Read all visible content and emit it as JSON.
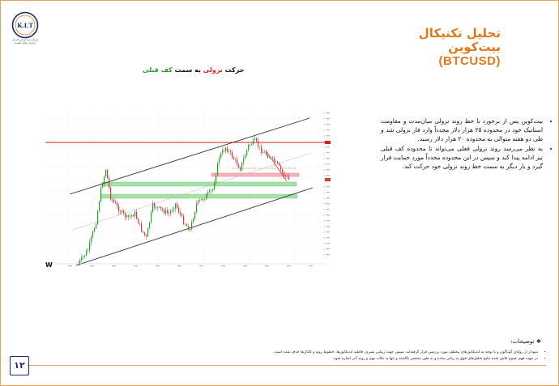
{
  "header": {
    "logo_text": "K.I.T",
    "logo_subtitle": "شرکت سبدگردانی کاردان ایرانیان تحلیل اقتصاد",
    "title_line1": "تحلیل تکنیکال",
    "title_line2": "بیت‌کوین",
    "title_line3": "(BTCUSD)"
  },
  "chart_caption": {
    "part1": "حرکت ",
    "part2": "نزولی",
    "part3": " به سمت ",
    "part4": "کف قبلی"
  },
  "chart": {
    "watermark": "W",
    "colors": {
      "up": "#2a9a2a",
      "down": "#d23b3b",
      "channel": "#222222",
      "resistance": "#d22222",
      "support_zone": "#7fd67f",
      "resist_zone": "#f4a3b0"
    }
  },
  "bullets": [
    "بیت‌کوین پس از برخورد با خط روند نزولی میان‌مدت و مقاومت استاتیک خود در محدوده ۲۵ هزار دلار مجدداً وارد فاز نزولی شد و طی دو هفته متوالی به محدوده ۲۰ هزار دلار رسید.",
    "به نظر می‌رسد روند نزولی فعلی می‌تواند تا محدوده کف قبلی نیز ادامه پیدا کند و سپس در این محدوده مجدداً مورد حمایت قرار گیرد و بار دیگر به سمت خط روند نزولی خود حرکت کند."
  ],
  "notes": {
    "title": "توضیحات:",
    "items": [
      "نمودار از زوایای گوناگون و با توجه به اندیکاتورهای مختلف مورد بررسی قرار گرفته‌اند، سپس جهت زیبایی بصری، قاطبه اندیکاتورها، خطوط روند و کانال‌ها حذف شده است.",
      "در جهت فهم عموم تلاش شده نتایج تحلیل‌های فوق به زبانی ساده و به طور مختصر نگاشته و تنها به نکات مهم و روند آتی اشاره شود."
    ]
  },
  "page_number": "۱۲"
}
